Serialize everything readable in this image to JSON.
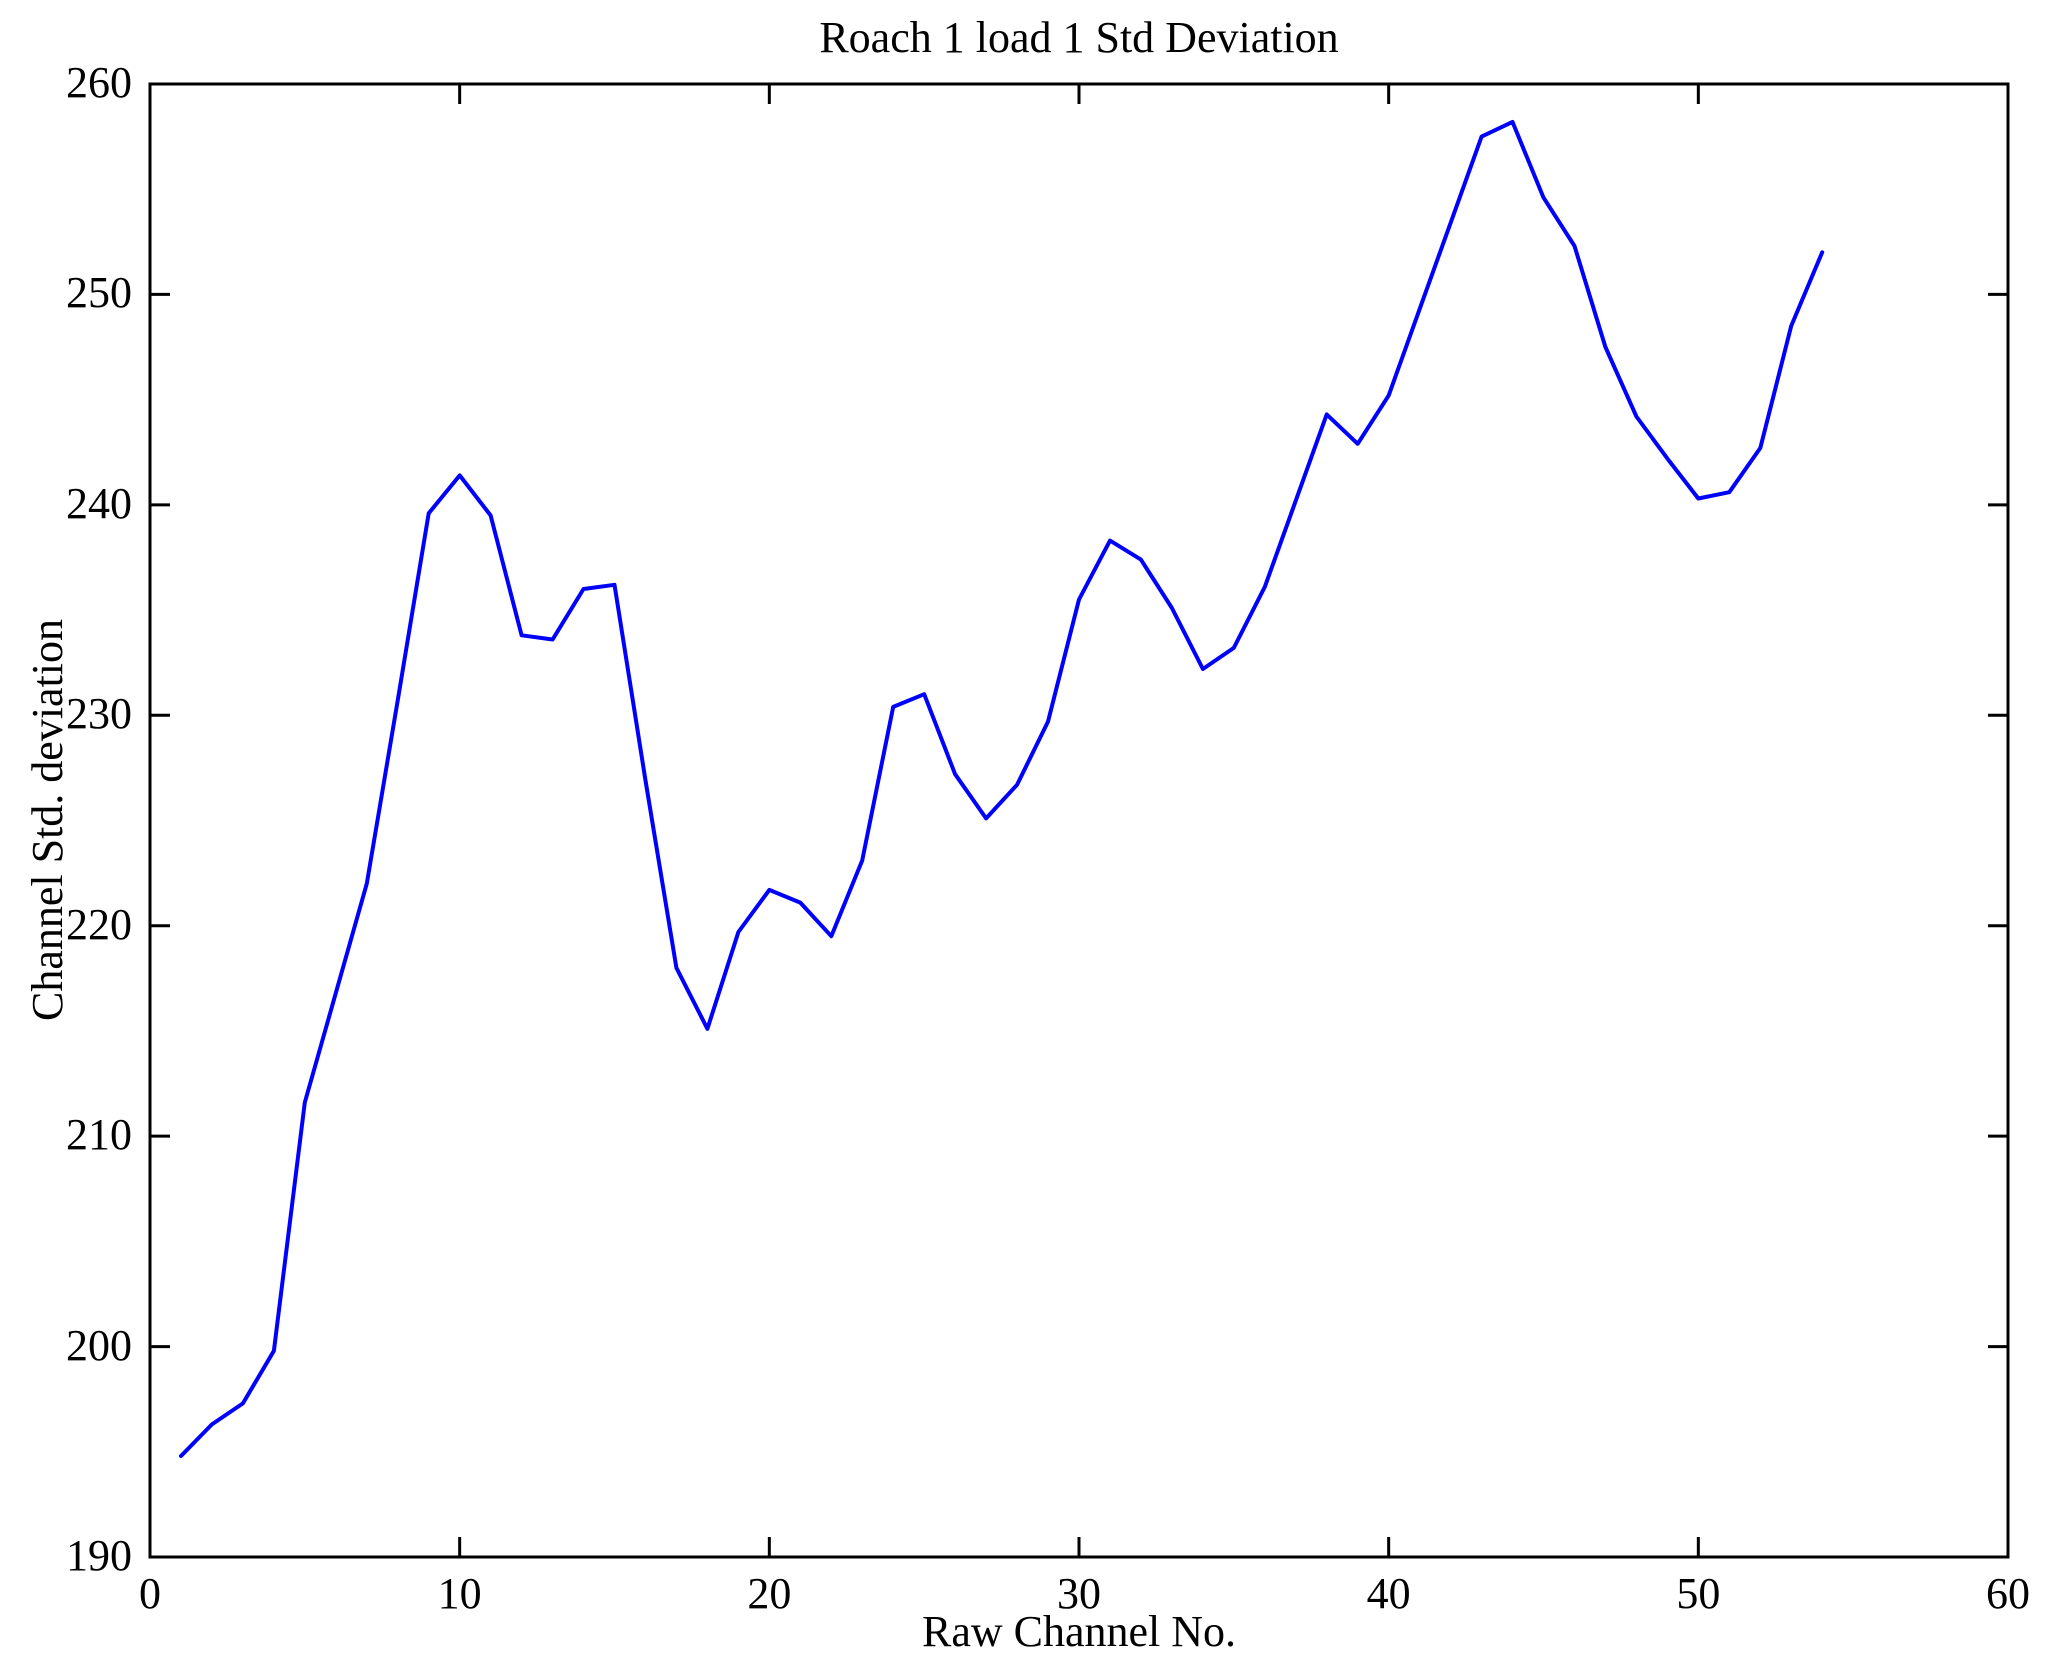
{
  "figure": {
    "background": "#ffffff",
    "axis_color": "#000000"
  },
  "chart_data": {
    "type": "line",
    "title": "Roach 1 load 1 Std Deviation",
    "xlabel": "Raw Channel No.",
    "ylabel": "Channel Std. deviation",
    "xlim": [
      0,
      60
    ],
    "ylim": [
      190,
      260
    ],
    "x_ticks": [
      "0",
      "10",
      "20",
      "30",
      "40",
      "50",
      "60"
    ],
    "y_ticks": [
      "190",
      "200",
      "210",
      "220",
      "230",
      "240",
      "250",
      "260"
    ],
    "grid": false,
    "legend": "none",
    "line_color": "#0000ff",
    "series_name": "Channel Std. deviation",
    "x": [
      1,
      2,
      3,
      4,
      5,
      6,
      7,
      8,
      9,
      10,
      11,
      12,
      13,
      14,
      15,
      16,
      17,
      18,
      19,
      20,
      21,
      22,
      23,
      24,
      25,
      26,
      27,
      28,
      29,
      30,
      31,
      32,
      33,
      34,
      35,
      36,
      37,
      38,
      39,
      40,
      41,
      42,
      43,
      44,
      45,
      46,
      47,
      48,
      49,
      50,
      51,
      52,
      53,
      54
    ],
    "values": [
      194.8,
      196.3,
      197.3,
      199.8,
      211.6,
      216.8,
      222.0,
      230.7,
      239.6,
      241.4,
      239.5,
      233.8,
      233.6,
      236.0,
      236.2,
      226.9,
      218.0,
      215.1,
      219.7,
      221.7,
      221.1,
      219.5,
      223.1,
      230.4,
      231.0,
      227.2,
      225.1,
      226.7,
      229.7,
      235.5,
      238.3,
      237.4,
      235.1,
      232.2,
      233.2,
      236.1,
      240.2,
      244.3,
      242.9,
      245.2,
      249.3,
      253.4,
      257.5,
      258.2,
      254.6,
      252.3,
      247.5,
      244.2,
      242.2,
      240.3,
      240.6,
      242.7,
      248.5,
      252.0
    ]
  }
}
